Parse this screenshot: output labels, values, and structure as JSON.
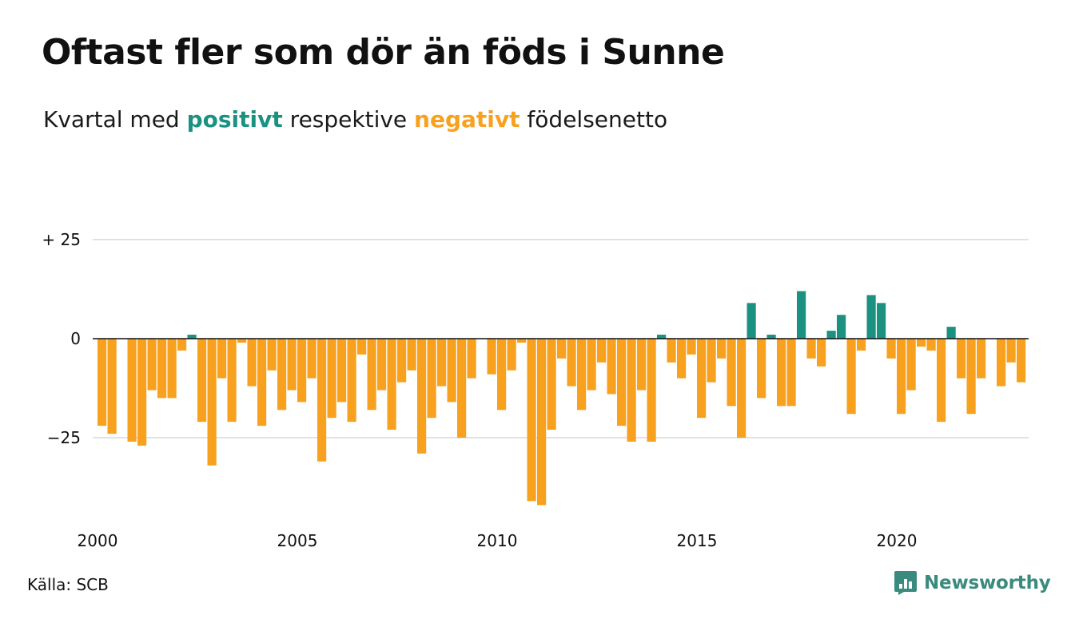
{
  "header": {
    "title": "Oftast fler som dör än föds i Sunne",
    "subtitle_parts": [
      "Kvartal med ",
      "positivt",
      " respektive ",
      "negativt",
      " födelsenetto"
    ]
  },
  "footer": {
    "source": "Källa: SCB",
    "brand": "Newsworthy",
    "brand_icon": "bar-chart-bubble-icon"
  },
  "colors": {
    "positive": "#1b9181",
    "negative": "#f7a11f",
    "grid": "#e2e2e2",
    "zero_line": "#111111",
    "brand": "#3a8a7e"
  },
  "chart_data": {
    "type": "bar",
    "x_unit": "quarter",
    "x_start": "2000 Q1",
    "x_ticks": [
      2000,
      2005,
      2010,
      2015,
      2020
    ],
    "y_ticks": [
      25,
      0,
      -25
    ],
    "y_tick_labels": [
      "+ 25",
      "0",
      "−25"
    ],
    "ylim": [
      -42,
      25
    ],
    "grid": true,
    "legend": "none",
    "values": [
      -22,
      -24,
      0,
      -26,
      -27,
      -13,
      -15,
      -15,
      -3,
      1,
      -21,
      -32,
      -10,
      -21,
      -1,
      -12,
      -22,
      -8,
      -18,
      -13,
      -16,
      -10,
      -31,
      -20,
      -16,
      -21,
      -4,
      -18,
      -13,
      -23,
      -11,
      -8,
      -29,
      -20,
      -12,
      -16,
      -25,
      -10,
      0,
      -9,
      -18,
      -8,
      -1,
      -41,
      -42,
      -23,
      -5,
      -12,
      -18,
      -13,
      -6,
      -14,
      -22,
      -26,
      -13,
      -26,
      1,
      -6,
      -10,
      -4,
      -20,
      -11,
      -5,
      -17,
      -25,
      9,
      -15,
      1,
      -17,
      -17,
      12,
      -5,
      -7,
      2,
      6,
      -19,
      -3,
      11,
      9,
      -5,
      -19,
      -13,
      -2,
      -3,
      -21,
      3,
      -10,
      -19,
      -10,
      0,
      -12,
      -6,
      -11
    ]
  }
}
